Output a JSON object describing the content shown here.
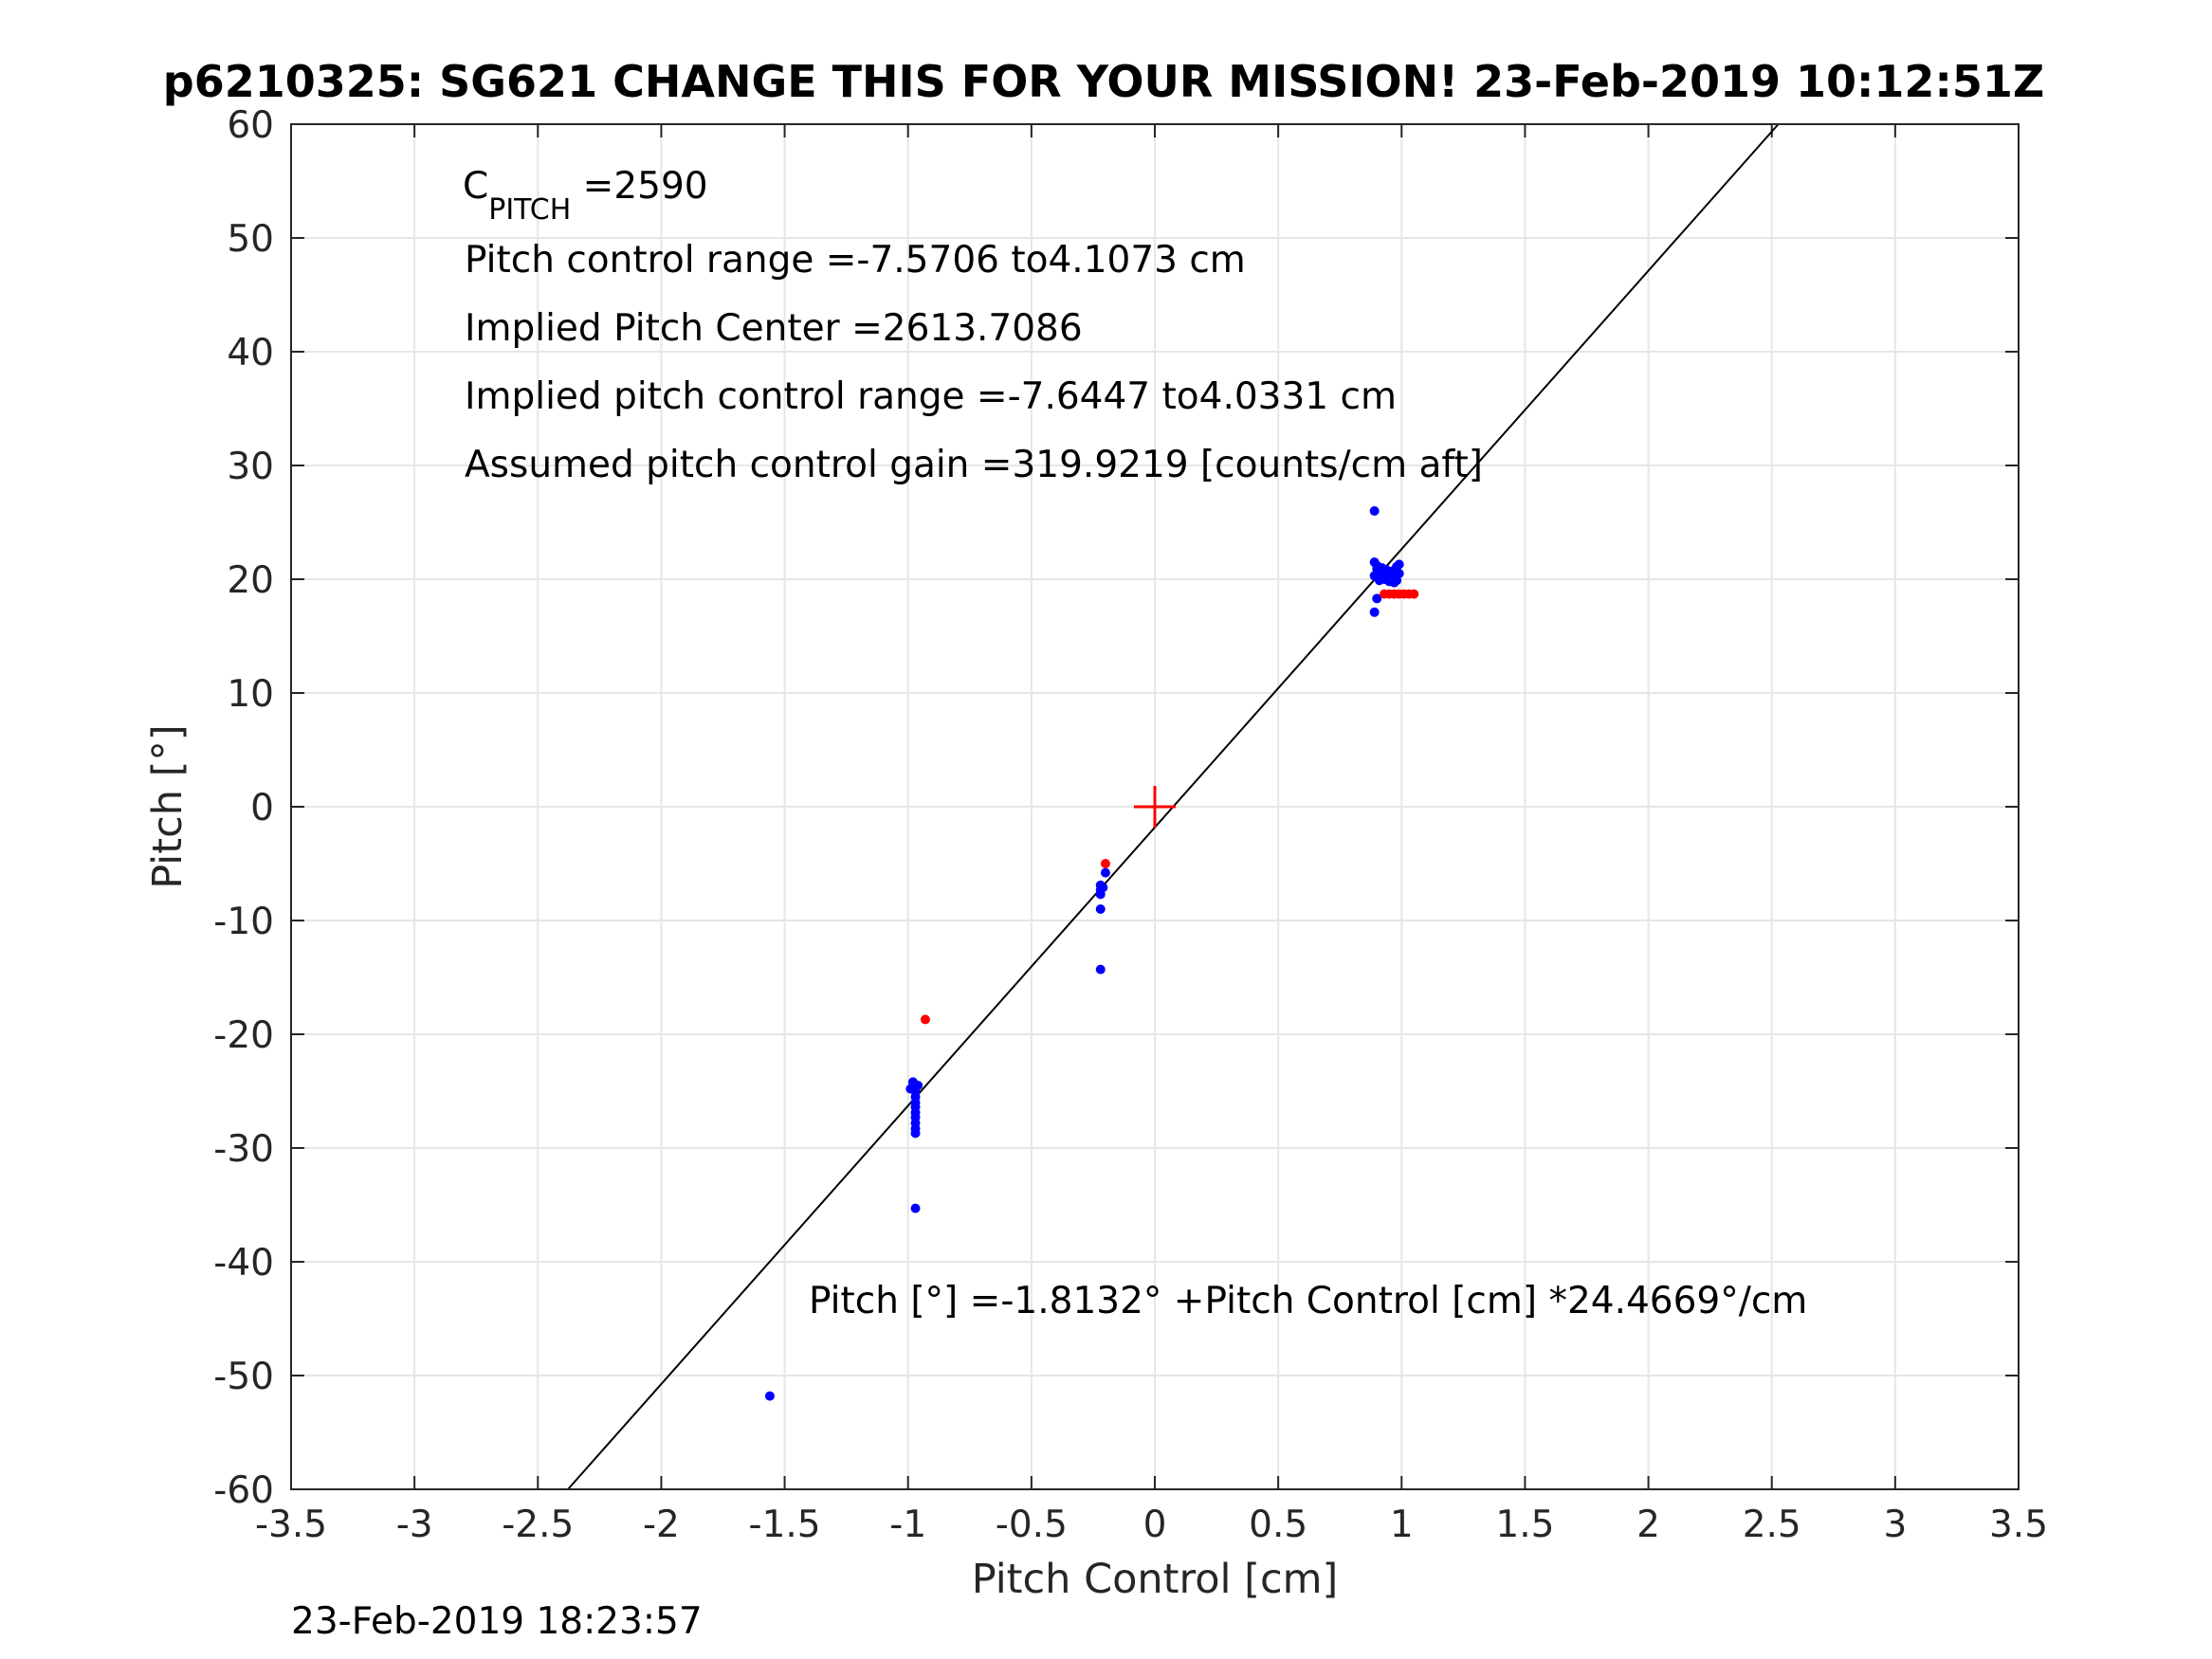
{
  "chart_data": {
    "type": "scatter",
    "title": "p6210325: SG621 CHANGE THIS FOR YOUR MISSION! 23-Feb-2019 10:12:51Z",
    "xlabel": "Pitch Control [cm]",
    "ylabel": "Pitch [°]",
    "xlim": [
      -3.5,
      3.5
    ],
    "ylim": [
      -60,
      60
    ],
    "xticks": [
      "-3.5",
      "-3",
      "-2.5",
      "-2",
      "-1.5",
      "-1",
      "-0.5",
      "0",
      "0.5",
      "1",
      "1.5",
      "2",
      "2.5",
      "3",
      "3.5"
    ],
    "yticks": [
      "60",
      "50",
      "40",
      "30",
      "20",
      "10",
      "0",
      "-10",
      "-20",
      "-30",
      "-40",
      "-50",
      "-60"
    ],
    "grid": true,
    "colors": {
      "blue": "#0000ff",
      "red": "#ff0000",
      "line": "#000000",
      "grid": "#e6e6e6"
    },
    "annotations": {
      "c_pitch_main": "C",
      "c_pitch_sub": "PITCH",
      "c_pitch_value": " =2590",
      "line2": "Pitch control range =-7.5706 to4.1073 cm",
      "line3": "Implied Pitch Center =2613.7086",
      "line4": "Implied pitch control range =-7.6447 to4.0331 cm",
      "line5": "Assumed pitch control gain =319.9219 [counts/cm aft]",
      "fit": "Pitch [°] =-1.8132° +Pitch Control [cm] *24.4669°/cm"
    },
    "fit_line": {
      "intercept": -1.8132,
      "slope": 24.4669
    },
    "center_marker": {
      "x": 0,
      "y": 0,
      "color": "#ff0000"
    },
    "series": [
      {
        "color": "#0000ff",
        "points": [
          [
            0.89,
            26.0
          ],
          [
            0.89,
            21.5
          ],
          [
            0.9,
            21.2
          ],
          [
            0.9,
            20.9
          ],
          [
            0.91,
            20.6
          ],
          [
            0.89,
            20.3
          ],
          [
            0.92,
            21.0
          ],
          [
            0.93,
            20.4
          ],
          [
            0.94,
            20.8
          ],
          [
            0.95,
            20.1
          ],
          [
            0.96,
            20.7
          ],
          [
            0.97,
            20.3
          ],
          [
            0.98,
            21.1
          ],
          [
            0.98,
            19.9
          ],
          [
            0.97,
            19.7
          ],
          [
            0.96,
            20.0
          ],
          [
            0.95,
            19.8
          ],
          [
            0.93,
            20.0
          ],
          [
            0.91,
            19.9
          ],
          [
            0.99,
            20.5
          ],
          [
            0.99,
            21.3
          ],
          [
            0.9,
            18.3
          ],
          [
            0.89,
            17.1
          ],
          [
            -0.98,
            -24.2
          ],
          [
            -0.98,
            -24.6
          ],
          [
            -0.97,
            -25.0
          ],
          [
            -0.97,
            -25.5
          ],
          [
            -0.97,
            -26.0
          ],
          [
            -0.97,
            -26.4
          ],
          [
            -0.97,
            -26.9
          ],
          [
            -0.97,
            -27.3
          ],
          [
            -0.97,
            -27.8
          ],
          [
            -0.97,
            -28.3
          ],
          [
            -0.97,
            -28.7
          ],
          [
            -0.96,
            -24.5
          ],
          [
            -0.99,
            -24.8
          ],
          [
            -0.97,
            -35.3
          ],
          [
            -0.22,
            -6.9
          ],
          [
            -0.22,
            -7.3
          ],
          [
            -0.22,
            -7.7
          ],
          [
            -0.21,
            -7.1
          ],
          [
            -0.2,
            -5.8
          ],
          [
            -0.22,
            -9.0
          ],
          [
            -0.22,
            -14.3
          ],
          [
            -1.56,
            -51.8
          ]
        ]
      },
      {
        "color": "#ff0000",
        "points": [
          [
            0.93,
            18.7
          ],
          [
            0.95,
            18.7
          ],
          [
            0.97,
            18.7
          ],
          [
            0.99,
            18.7
          ],
          [
            1.01,
            18.7
          ],
          [
            1.03,
            18.7
          ],
          [
            1.05,
            18.7
          ],
          [
            -0.2,
            -5.0
          ],
          [
            -0.93,
            -18.7
          ]
        ]
      }
    ]
  },
  "footer": {
    "timestamp": "23-Feb-2019 18:23:57"
  }
}
